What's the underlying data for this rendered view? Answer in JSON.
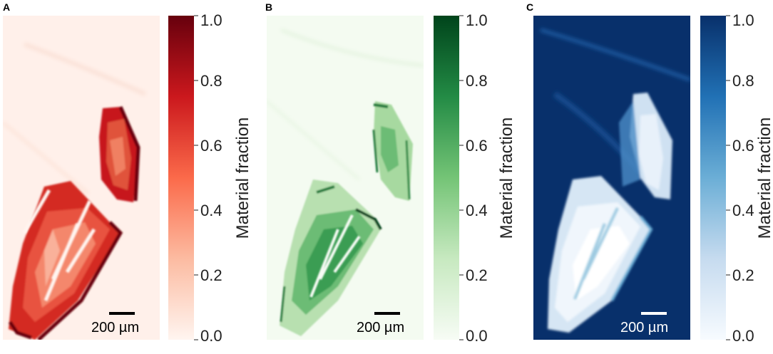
{
  "chart_data": [
    {
      "type": "heatmap",
      "panel_label": "A",
      "colormap": "Reds",
      "colors": {
        "low": "#fff5f0",
        "mid": "#ef3b2c",
        "high": "#67000d"
      },
      "colorbar": {
        "label": "Material fraction",
        "range": [
          0.0,
          1.0
        ],
        "ticks": [
          "0.0",
          "0.2",
          "0.4",
          "0.6",
          "0.8",
          "1.0"
        ]
      },
      "scale_bar": {
        "label": "200 µm",
        "color": "#000000"
      }
    },
    {
      "type": "heatmap",
      "panel_label": "B",
      "colormap": "Greens",
      "colors": {
        "low": "#f7fcf5",
        "mid": "#41ab5d",
        "high": "#00441b"
      },
      "colorbar": {
        "label": "Material fraction",
        "range": [
          0.0,
          1.0
        ],
        "ticks": [
          "0.0",
          "0.2",
          "0.4",
          "0.6",
          "0.8",
          "1.0"
        ]
      },
      "scale_bar": {
        "label": "200 µm",
        "color": "#000000"
      }
    },
    {
      "type": "heatmap",
      "panel_label": "C",
      "colormap": "Blues",
      "colors": {
        "low": "#f7fbff",
        "mid": "#4292c6",
        "high": "#08306b"
      },
      "colorbar": {
        "label": "Material fraction",
        "range": [
          0.0,
          1.0
        ],
        "ticks": [
          "0.0",
          "0.2",
          "0.4",
          "0.6",
          "0.8",
          "1.0"
        ]
      },
      "scale_bar": {
        "label": "200 µm",
        "color": "#ffffff"
      }
    }
  ]
}
